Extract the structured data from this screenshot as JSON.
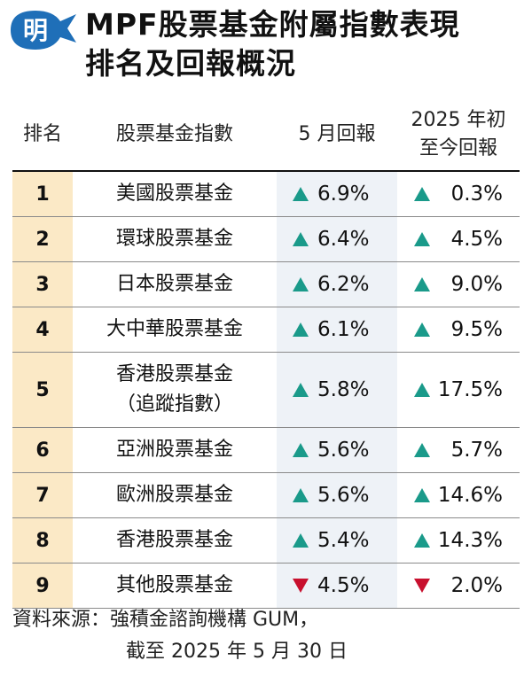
{
  "header": {
    "logo_text": "明",
    "title_line1": "MPF股票基金附屬指數表現",
    "title_line2": "排名及回報概況"
  },
  "table": {
    "columns": {
      "rank": "排名",
      "name": "股票基金指數",
      "month": "5 月回報",
      "ytd_line1": "2025 年初",
      "ytd_line2": "至今回報"
    },
    "rows": [
      {
        "rank": "1",
        "name": "美國股票基金",
        "name2": "",
        "month": "6.9%",
        "month_dir": "up",
        "ytd": "0.3%",
        "ytd_dir": "up"
      },
      {
        "rank": "2",
        "name": "環球股票基金",
        "name2": "",
        "month": "6.4%",
        "month_dir": "up",
        "ytd": "4.5%",
        "ytd_dir": "up"
      },
      {
        "rank": "3",
        "name": "日本股票基金",
        "name2": "",
        "month": "6.2%",
        "month_dir": "up",
        "ytd": "9.0%",
        "ytd_dir": "up"
      },
      {
        "rank": "4",
        "name": "大中華股票基金",
        "name2": "",
        "month": "6.1%",
        "month_dir": "up",
        "ytd": "9.5%",
        "ytd_dir": "up"
      },
      {
        "rank": "5",
        "name": "香港股票基金",
        "name2": "（追蹤指數）",
        "month": "5.8%",
        "month_dir": "up",
        "ytd": "17.5%",
        "ytd_dir": "up"
      },
      {
        "rank": "6",
        "name": "亞洲股票基金",
        "name2": "",
        "month": "5.6%",
        "month_dir": "up",
        "ytd": "5.7%",
        "ytd_dir": "up"
      },
      {
        "rank": "7",
        "name": "歐洲股票基金",
        "name2": "",
        "month": "5.6%",
        "month_dir": "up",
        "ytd": "14.6%",
        "ytd_dir": "up"
      },
      {
        "rank": "8",
        "name": "香港股票基金",
        "name2": "",
        "month": "5.4%",
        "month_dir": "up",
        "ytd": "14.3%",
        "ytd_dir": "up"
      },
      {
        "rank": "9",
        "name": "其他股票基金",
        "name2": "",
        "month": "4.5%",
        "month_dir": "down",
        "ytd": "2.0%",
        "ytd_dir": "down"
      }
    ]
  },
  "footer": {
    "source": "資料來源：強積金諮詢機構 GUM，",
    "date": "截至 2025 年 5 月 30 日"
  },
  "colors": {
    "up": "#1a9a8a",
    "down": "#c8102e",
    "rank_bg": "#fbe9c6",
    "month_bg": "#eef2f7",
    "logo_blue": "#1f6fb8"
  },
  "icons": {
    "up": "triangle-up-icon",
    "down": "triangle-down-icon"
  }
}
